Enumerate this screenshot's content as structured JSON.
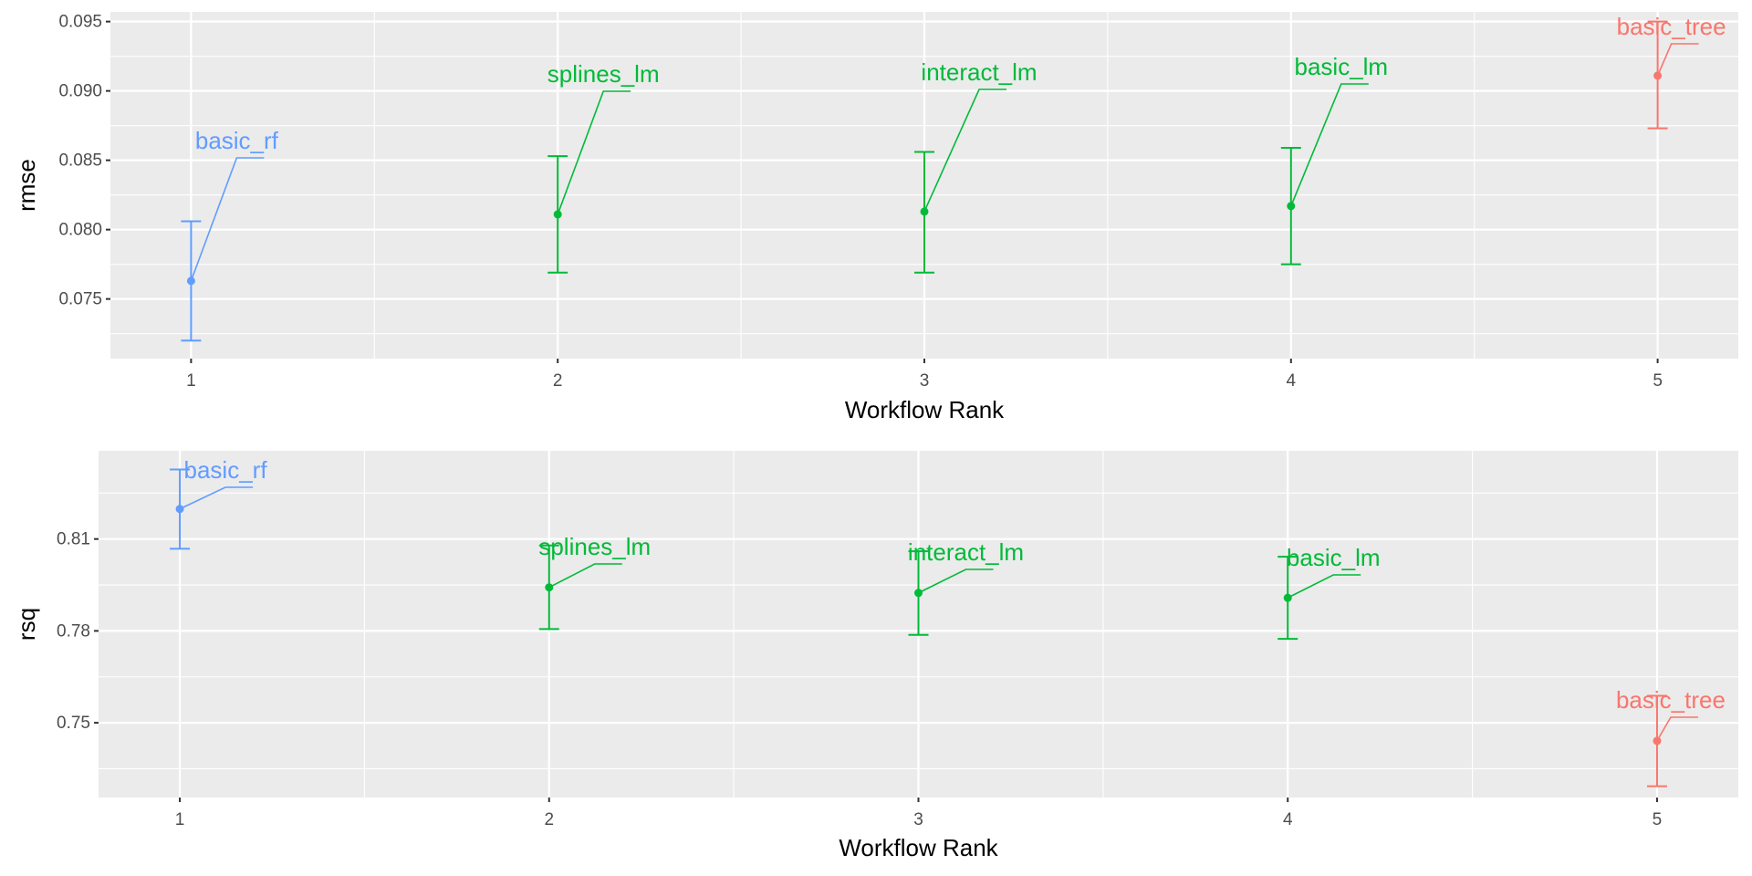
{
  "chart_data": [
    {
      "type": "scatter",
      "xlabel": "Workflow Rank",
      "ylabel": "rmse",
      "xlim": [
        0.78,
        5.22
      ],
      "ylim": [
        0.0707,
        0.0957
      ],
      "x_ticks": [
        "1",
        "2",
        "3",
        "4",
        "5"
      ],
      "y_ticks": [
        "0.075",
        "0.080",
        "0.085",
        "0.090",
        "0.095"
      ],
      "grid": true,
      "legend": "none",
      "points": [
        {
          "rank": 1,
          "label": "basic_rf",
          "mean": 0.0763,
          "lower": 0.072,
          "upper": 0.0806,
          "color": "#619CFF"
        },
        {
          "rank": 2,
          "label": "splines_lm",
          "mean": 0.0811,
          "lower": 0.0769,
          "upper": 0.0853,
          "color": "#00BA38"
        },
        {
          "rank": 3,
          "label": "interact_lm",
          "mean": 0.0813,
          "lower": 0.0769,
          "upper": 0.0856,
          "color": "#00BA38"
        },
        {
          "rank": 4,
          "label": "basic_lm",
          "mean": 0.0817,
          "lower": 0.0775,
          "upper": 0.0859,
          "color": "#00BA38"
        },
        {
          "rank": 5,
          "label": "basic_tree",
          "mean": 0.0911,
          "lower": 0.0873,
          "upper": 0.095,
          "color": "#F8766D"
        }
      ]
    },
    {
      "type": "scatter",
      "xlabel": "Workflow Rank",
      "ylabel": "rsq",
      "xlim": [
        0.78,
        5.22
      ],
      "ylim": [
        0.7256,
        0.8388
      ],
      "x_ticks": [
        "1",
        "2",
        "3",
        "4",
        "5"
      ],
      "y_ticks": [
        "0.75",
        "0.78",
        "0.81"
      ],
      "grid": true,
      "legend": "none",
      "points": [
        {
          "rank": 1,
          "label": "basic_rf",
          "mean": 0.8198,
          "lower": 0.8068,
          "upper": 0.8327,
          "color": "#619CFF"
        },
        {
          "rank": 2,
          "label": "splines_lm",
          "mean": 0.7942,
          "lower": 0.7806,
          "upper": 0.8079,
          "color": "#00BA38"
        },
        {
          "rank": 3,
          "label": "interact_lm",
          "mean": 0.7924,
          "lower": 0.7787,
          "upper": 0.806,
          "color": "#00BA38"
        },
        {
          "rank": 4,
          "label": "basic_lm",
          "mean": 0.7908,
          "lower": 0.7774,
          "upper": 0.8042,
          "color": "#00BA38"
        },
        {
          "rank": 5,
          "label": "basic_tree",
          "mean": 0.7441,
          "lower": 0.7293,
          "upper": 0.7588,
          "color": "#F8766D"
        }
      ]
    }
  ]
}
